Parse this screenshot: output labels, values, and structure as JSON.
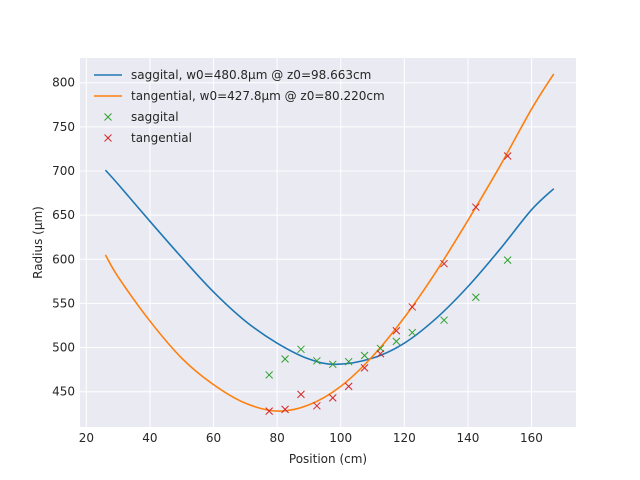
{
  "chart_data": {
    "type": "line",
    "title": "",
    "xlabel": "Position (cm)",
    "ylabel": "Radius (µm)",
    "xlim": [
      18,
      174
    ],
    "ylim": [
      410,
      828
    ],
    "xticks": [
      20,
      40,
      60,
      80,
      100,
      120,
      140,
      160
    ],
    "yticks": [
      450,
      500,
      550,
      600,
      650,
      700,
      750,
      800
    ],
    "grid": true,
    "legend_placement": "top-left",
    "series": [
      {
        "name": "saggital, w0=480.8µm @ z0=98.663cm",
        "kind": "line",
        "color": "#1f77b4",
        "x": [
          26,
          30,
          40,
          50,
          60,
          70,
          80,
          90,
          98.663,
          110,
          120,
          130,
          140,
          150,
          160,
          167
        ],
        "values": [
          701,
          685,
          643,
          602,
          563,
          530,
          505,
          487,
          481,
          488,
          505,
          533,
          569,
          611,
          656,
          680
        ]
      },
      {
        "name": "tangential, w0=427.8µm @ z0=80.220cm",
        "kind": "line",
        "color": "#ff7f0e",
        "x": [
          26,
          30,
          40,
          50,
          60,
          70,
          80.22,
          90,
          100,
          110,
          120,
          130,
          140,
          150,
          160,
          167
        ],
        "values": [
          605,
          580,
          530,
          488,
          458,
          437,
          428,
          435,
          456,
          490,
          534,
          586,
          644,
          705,
          770,
          810
        ]
      },
      {
        "name": "saggital",
        "kind": "marker",
        "color": "#2ca02c",
        "x": [
          77.5,
          82.5,
          87.5,
          92.5,
          97.5,
          102.5,
          107.5,
          112.5,
          117.5,
          122.5,
          132.5,
          142.5,
          152.5
        ],
        "values": [
          469,
          487,
          498,
          485,
          481,
          484,
          491,
          499,
          507,
          517,
          531,
          557,
          599
        ]
      },
      {
        "name": "tangential",
        "kind": "marker",
        "color": "#d62728",
        "x": [
          77.5,
          82.5,
          87.5,
          92.5,
          97.5,
          102.5,
          107.5,
          112.5,
          117.5,
          122.5,
          132.5,
          142.5,
          152.5
        ],
        "values": [
          428,
          430,
          447,
          434,
          443,
          456,
          477,
          493,
          519,
          546,
          595,
          659,
          717
        ]
      }
    ]
  }
}
